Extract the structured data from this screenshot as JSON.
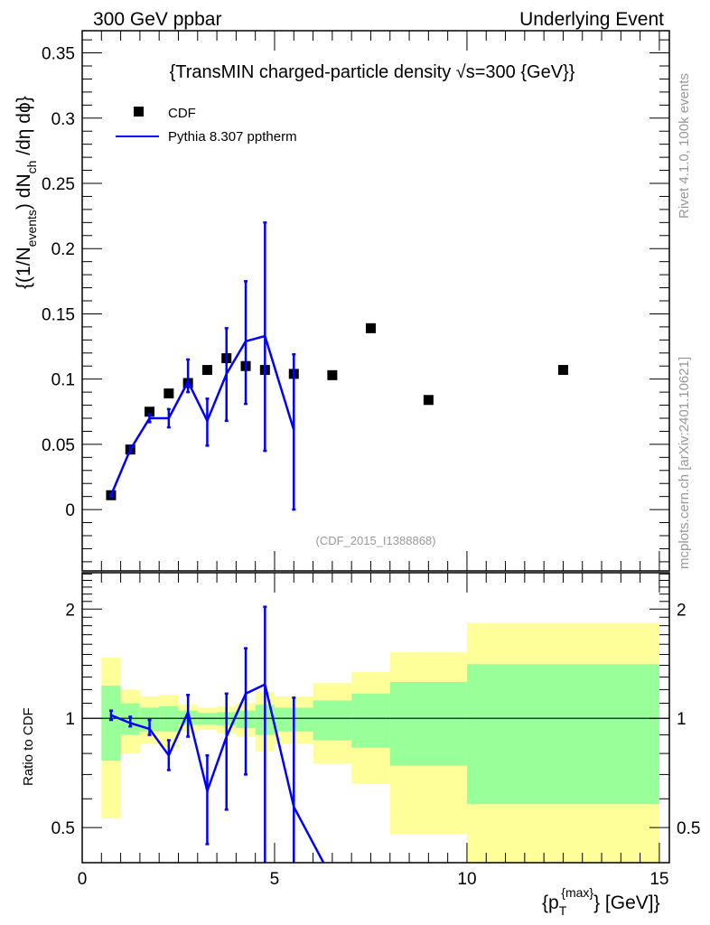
{
  "header": {
    "left": "300 GeV ppbar",
    "right": "Underlying Event"
  },
  "side_labels": {
    "rivet": "Rivet 4.1.0,  100k events",
    "mcplots": "mcplots.cern.ch [arXiv:2401.10621]"
  },
  "watermark": "(CDF_2015_I1388868)",
  "colors": {
    "mc": "#0000ff",
    "data": "#000000",
    "band_green": "#99ff99",
    "band_yellow": "#ffff99"
  },
  "chart_data": [
    {
      "type": "scatter",
      "title": "{TransMIN charged-particle density √s=300 {GeV}}",
      "ylabel": {
        "a": "{(1/N",
        "b": "events",
        "c": ") dN",
        "d": "ch",
        "e": " /dη  dϕ}"
      },
      "xlabel": {
        "a": "{p",
        "b": "T",
        "c": "{max}",
        "d": "} [GeV]}"
      },
      "xlim": [
        0,
        15.26
      ],
      "ylim": [
        -0.047,
        0.367
      ],
      "yticks": [
        0,
        0.05,
        0.1,
        0.15,
        0.2,
        0.25,
        0.3,
        0.35
      ],
      "ytick_labels": [
        "0",
        "0.05",
        "0.1",
        "0.15",
        "0.2",
        "0.25",
        "0.3",
        "0.35"
      ],
      "legend": {
        "placement": "top-left",
        "entries": [
          "CDF",
          "Pythia 8.307 pptherm"
        ]
      },
      "x": [
        0.75,
        1.25,
        1.75,
        2.25,
        2.75,
        3.25,
        3.75,
        4.25,
        4.75,
        5.5,
        6.5,
        7.5,
        9,
        12.5
      ],
      "series": [
        {
          "name": "CDF",
          "values": [
            0.011,
            0.046,
            0.075,
            0.089,
            0.097,
            0.107,
            0.116,
            0.11,
            0.107,
            0.104,
            0.103,
            0.139,
            0.084,
            0.107
          ]
        },
        {
          "name": "Pythia 8.307 pptherm",
          "values": [
            0.011,
            0.046,
            0.07,
            0.07,
            0.098,
            0.068,
            0.104,
            0.129,
            0.133,
            0.061,
            null,
            null,
            null,
            null
          ],
          "err_lo": [
            0.01,
            0.044,
            0.067,
            0.063,
            0.09,
            0.049,
            0.068,
            0.081,
            0.045,
            0.0,
            null,
            null,
            null,
            null
          ],
          "err_hi": [
            0.012,
            0.048,
            0.073,
            0.077,
            0.115,
            0.085,
            0.139,
            0.175,
            0.22,
            0.119,
            null,
            null,
            null,
            null
          ]
        }
      ]
    },
    {
      "type": "line",
      "ylabel": "Ratio to CDF",
      "yscale": "log",
      "ylim": [
        0.4,
        2.52
      ],
      "xlim": [
        0,
        15.26
      ],
      "xticks": [
        0,
        5,
        10,
        15
      ],
      "xtick_labels": [
        "0",
        "5",
        "10",
        "15"
      ],
      "yticks": [
        0.5,
        1,
        2
      ],
      "ytick_labels": [
        "0.5",
        "1",
        "2"
      ],
      "bins": [
        [
          0.5,
          1
        ],
        [
          1,
          1.5
        ],
        [
          1.5,
          2
        ],
        [
          2,
          2.5
        ],
        [
          2.5,
          3
        ],
        [
          3,
          3.5
        ],
        [
          3.5,
          4
        ],
        [
          4,
          4.5
        ],
        [
          4.5,
          5
        ],
        [
          5,
          6
        ],
        [
          6,
          7
        ],
        [
          7,
          8
        ],
        [
          8,
          10
        ],
        [
          10,
          15
        ]
      ],
      "band_yellow": [
        [
          0.53,
          1.47
        ],
        [
          0.8,
          1.2
        ],
        [
          0.85,
          1.15
        ],
        [
          0.83,
          1.16
        ],
        [
          0.92,
          1.09
        ],
        [
          0.93,
          1.07
        ],
        [
          0.91,
          1.08
        ],
        [
          0.89,
          1.1
        ],
        [
          0.81,
          1.18
        ],
        [
          0.85,
          1.15
        ],
        [
          0.75,
          1.25
        ],
        [
          0.66,
          1.34
        ],
        [
          0.48,
          1.52
        ],
        [
          0.3,
          1.83
        ]
      ],
      "band_green": [
        [
          0.764,
          1.23
        ],
        [
          0.9,
          1.1
        ],
        [
          0.92,
          1.07
        ],
        [
          0.92,
          1.08
        ],
        [
          0.96,
          1.05
        ],
        [
          0.96,
          1.035
        ],
        [
          0.955,
          1.04
        ],
        [
          0.94,
          1.05
        ],
        [
          0.9,
          1.09
        ],
        [
          0.92,
          1.07
        ],
        [
          0.87,
          1.12
        ],
        [
          0.83,
          1.17
        ],
        [
          0.74,
          1.26
        ],
        [
          0.58,
          1.41
        ]
      ],
      "x": [
        0.75,
        1.25,
        1.75,
        2.25,
        2.75,
        3.25,
        3.75,
        4.25,
        4.75,
        5.5,
        6.5
      ],
      "mc_ratio": [
        1.02,
        0.97,
        0.935,
        0.79,
        1.04,
        0.63,
        0.89,
        1.17,
        1.24,
        0.57,
        0.3
      ],
      "mc_err_lo": [
        0.99,
        0.95,
        0.9,
        0.72,
        0.89,
        0.45,
        0.56,
        0.7,
        0.36,
        0.2,
        null
      ],
      "mc_err_hi": [
        1.05,
        1.01,
        0.99,
        0.87,
        1.16,
        0.79,
        1.17,
        1.56,
        2.03,
        1.14,
        null
      ]
    }
  ]
}
